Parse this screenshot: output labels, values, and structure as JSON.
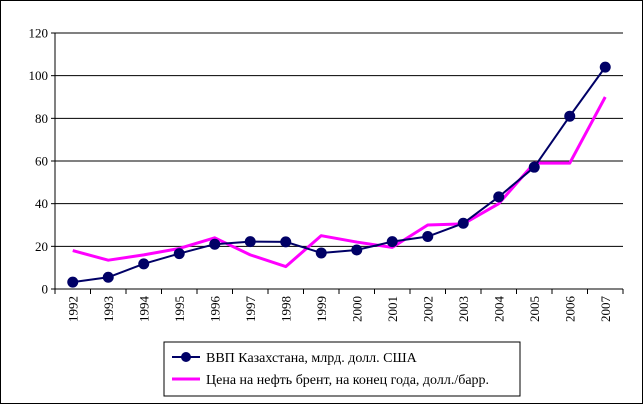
{
  "chart_data": {
    "type": "line",
    "title": "",
    "xlabel": "",
    "ylabel": "",
    "ylim": [
      0,
      120
    ],
    "yticks": [
      0,
      20,
      40,
      60,
      80,
      100,
      120
    ],
    "grid": "horizontal",
    "legend_position": "bottom",
    "categories": [
      "1992",
      "1993",
      "1994",
      "1995",
      "1996",
      "1997",
      "1998",
      "1999",
      "2000",
      "2001",
      "2002",
      "2003",
      "2004",
      "2005",
      "2006",
      "2007"
    ],
    "series": [
      {
        "name": "ВВП Казахстана, млрд. долл. США",
        "color": "#000066",
        "marker": "circle",
        "values": [
          3.2,
          5.5,
          11.8,
          16.6,
          21.0,
          22.2,
          22.1,
          16.9,
          18.3,
          22.2,
          24.6,
          30.8,
          43.2,
          57.1,
          81.0,
          104.0
        ]
      },
      {
        "name": "Цена на нефть брент, на конец года, долл./барр.",
        "color": "#ff00ff",
        "marker": "none",
        "values": [
          18.0,
          13.5,
          16.0,
          19.0,
          24.0,
          16.0,
          10.5,
          25.0,
          22.0,
          19.5,
          30.0,
          30.5,
          40.0,
          59.0,
          59.0,
          90.0
        ]
      }
    ]
  }
}
